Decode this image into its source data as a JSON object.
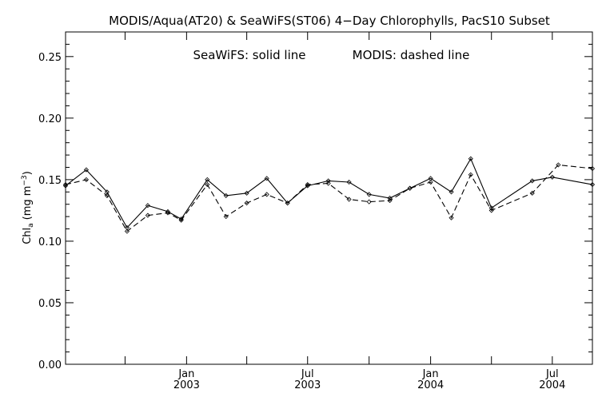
{
  "chart_data": {
    "type": "line",
    "title": "MODIS/Aqua(AT20) & SeaWiFS(ST06) 4−Day Chlorophylls, PacS10 Subset",
    "annotation_solid": "SeaWiFS: solid line",
    "annotation_dashed": "MODIS: dashed line",
    "ylabel_main": "Chl",
    "ylabel_sub": "a",
    "ylabel_units_pre": "(mg m",
    "ylabel_units_sup": "−3",
    "ylabel_units_post": ")",
    "ylim": [
      0.0,
      0.27
    ],
    "yticks": [
      "0.00",
      "0.05",
      "0.10",
      "0.15",
      "0.20",
      "0.25"
    ],
    "xlim": [
      "2002-07-04",
      "2004-08-30"
    ],
    "xtick_labels": [
      {
        "date": "2003-01-01",
        "month": "Jan",
        "year": "2003"
      },
      {
        "date": "2003-07-01",
        "month": "Jul",
        "year": "2003"
      },
      {
        "date": "2004-01-01",
        "month": "Jan",
        "year": "2004"
      },
      {
        "date": "2004-07-01",
        "month": "Jul",
        "year": "2004"
      }
    ],
    "minor_ticks": [
      "2002-10-01",
      "2003-04-01",
      "2003-10-01",
      "2004-04-01"
    ],
    "grid": false,
    "series": [
      {
        "name": "SeaWiFS",
        "line": "solid",
        "points": [
          [
            "2002-07-04",
            0.145
          ],
          [
            "2002-08-04",
            0.158
          ],
          [
            "2002-09-04",
            0.14
          ],
          [
            "2002-10-04",
            0.111
          ],
          [
            "2002-11-04",
            0.129
          ],
          [
            "2002-12-04",
            0.124
          ],
          [
            "2002-12-24",
            0.118
          ],
          [
            "2003-02-01",
            0.15
          ],
          [
            "2003-03-01",
            0.137
          ],
          [
            "2003-04-01",
            0.139
          ],
          [
            "2003-05-01",
            0.151
          ],
          [
            "2003-06-01",
            0.131
          ],
          [
            "2003-07-01",
            0.145
          ],
          [
            "2003-08-01",
            0.149
          ],
          [
            "2003-09-01",
            0.148
          ],
          [
            "2003-10-01",
            0.138
          ],
          [
            "2003-11-01",
            0.135
          ],
          [
            "2003-12-01",
            0.143
          ],
          [
            "2004-01-01",
            0.151
          ],
          [
            "2004-02-01",
            0.14
          ],
          [
            "2004-03-01",
            0.167
          ],
          [
            "2004-04-01",
            0.127
          ],
          [
            "2004-06-01",
            0.149
          ],
          [
            "2004-07-01",
            0.152
          ],
          [
            "2004-08-30",
            0.146
          ]
        ]
      },
      {
        "name": "MODIS",
        "line": "dashed",
        "points": [
          [
            "2002-07-04",
            0.146
          ],
          [
            "2002-08-04",
            0.15
          ],
          [
            "2002-09-04",
            0.137
          ],
          [
            "2002-10-04",
            0.108
          ],
          [
            "2002-11-04",
            0.121
          ],
          [
            "2002-12-04",
            0.123
          ],
          [
            "2002-12-24",
            0.117
          ],
          [
            "2003-02-01",
            0.146
          ],
          [
            "2003-03-01",
            0.12
          ],
          [
            "2003-04-01",
            0.131
          ],
          [
            "2003-05-01",
            0.138
          ],
          [
            "2003-06-01",
            0.131
          ],
          [
            "2003-07-01",
            0.146
          ],
          [
            "2003-08-01",
            0.147
          ],
          [
            "2003-09-01",
            0.134
          ],
          [
            "2003-10-01",
            0.132
          ],
          [
            "2003-11-01",
            0.133
          ],
          [
            "2003-12-01",
            0.143
          ],
          [
            "2004-01-01",
            0.148
          ],
          [
            "2004-02-01",
            0.119
          ],
          [
            "2004-03-01",
            0.154
          ],
          [
            "2004-04-01",
            0.125
          ],
          [
            "2004-06-01",
            0.139
          ],
          [
            "2004-07-10",
            0.162
          ],
          [
            "2004-08-30",
            0.159
          ]
        ]
      }
    ]
  }
}
